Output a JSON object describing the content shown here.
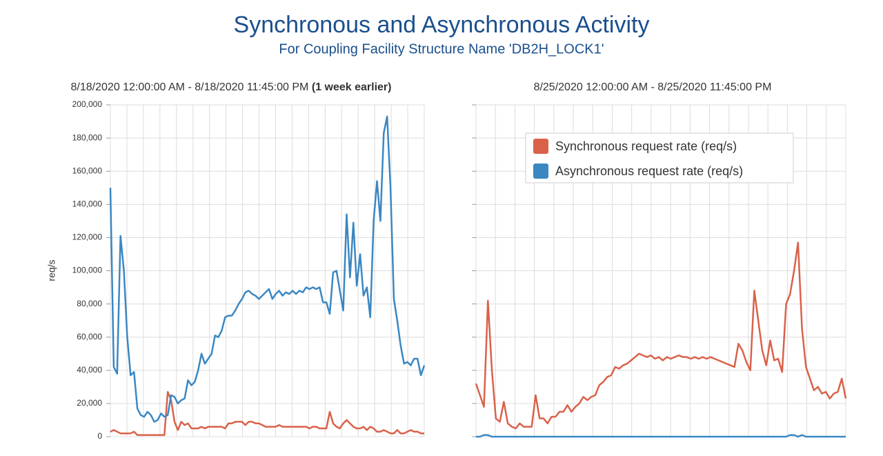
{
  "header": {
    "title": "Synchronous and Asynchronous Activity",
    "subtitle": "For Coupling Facility Structure Name 'DB2H_LOCK1'"
  },
  "chart_data": [
    {
      "type": "line",
      "title": "8/18/2020 12:00:00 AM - 8/18/2020 11:45:00 PM",
      "title_note": "(1 week earlier)",
      "y_label": "req/s",
      "ylim": [
        0,
        200000
      ],
      "yticks": [
        0,
        {
          "value": 20000,
          "label": "20,000"
        },
        {
          "value": 40000,
          "label": "40,000"
        },
        {
          "value": 60000,
          "label": "60,000"
        },
        {
          "value": 80000,
          "label": "80,000"
        },
        {
          "value": 100000,
          "label": "100,000"
        },
        {
          "value": 120000,
          "label": "120,000"
        },
        {
          "value": 140000,
          "label": "140,000"
        },
        {
          "value": 160000,
          "label": "160,000"
        },
        {
          "value": 180000,
          "label": "180,000"
        },
        {
          "value": 200000,
          "label": "200,000"
        }
      ],
      "grid": true,
      "series": [
        {
          "color": "#d9614a",
          "values": [
            3000,
            4000,
            3000,
            2000,
            2000,
            2000,
            2000,
            3000,
            1000,
            1000,
            1000,
            1000,
            1000,
            1000,
            1000,
            1000,
            1000,
            27000,
            22000,
            9000,
            4000,
            9000,
            7000,
            8000,
            5000,
            5000,
            5000,
            6000,
            5000,
            6000,
            6000,
            6000,
            6000,
            6000,
            5000,
            8000,
            8000,
            9000,
            9000,
            9000,
            7000,
            9000,
            9000,
            8000,
            8000,
            7000,
            6000,
            6000,
            6000,
            6000,
            7000,
            6000,
            6000,
            6000,
            6000,
            6000,
            6000,
            6000,
            6000,
            5000,
            6000,
            6000,
            5000,
            5000,
            5000,
            15000,
            8000,
            6000,
            5000,
            8000,
            10000,
            8000,
            6000,
            5000,
            5000,
            6000,
            4000,
            6000,
            5000,
            3000,
            3000,
            4000,
            3000,
            2000,
            2000,
            4000,
            2000,
            2000,
            3000,
            4000,
            3000,
            3000,
            2000,
            2000
          ]
        },
        {
          "color": "#3a87c2",
          "values": [
            150000,
            42000,
            38000,
            121000,
            100000,
            60000,
            37000,
            39000,
            17000,
            13000,
            12000,
            15000,
            13000,
            9000,
            10000,
            14000,
            12000,
            13000,
            25000,
            24000,
            20000,
            22000,
            23000,
            34000,
            31000,
            33000,
            40000,
            50000,
            44000,
            47000,
            50000,
            61000,
            60000,
            64000,
            72000,
            73000,
            73000,
            76000,
            80000,
            83000,
            87000,
            88000,
            86000,
            85000,
            83000,
            85000,
            87000,
            89000,
            83000,
            86000,
            88000,
            85000,
            87000,
            86000,
            88000,
            86000,
            88000,
            87000,
            90000,
            89000,
            90000,
            89000,
            90000,
            81000,
            81000,
            74000,
            99000,
            100000,
            88000,
            76000,
            134000,
            96000,
            129000,
            91000,
            110000,
            85000,
            90000,
            72000,
            130000,
            154000,
            130000,
            183000,
            193000,
            150000,
            83000,
            70000,
            55000,
            44000,
            45000,
            43000,
            47000,
            47000,
            37000,
            43000
          ]
        }
      ]
    },
    {
      "type": "line",
      "title": "8/25/2020 12:00:00 AM - 8/25/2020 11:45:00 PM",
      "ylim": [
        0,
        200000
      ],
      "yticks": [
        0,
        20000,
        40000,
        60000,
        80000,
        100000,
        120000,
        140000,
        160000,
        180000,
        200000
      ],
      "grid": true,
      "legend": "top",
      "series": [
        {
          "name": "Synchronous request rate (req/s)",
          "color": "#d9614a",
          "values": [
            32000,
            25000,
            18000,
            82000,
            40000,
            11000,
            9000,
            21000,
            8000,
            6000,
            5000,
            8000,
            6000,
            6000,
            6000,
            25000,
            11000,
            11000,
            8000,
            12000,
            12000,
            15000,
            15000,
            19000,
            15000,
            18000,
            20000,
            24000,
            22000,
            24000,
            25000,
            31000,
            33000,
            36000,
            37000,
            42000,
            41000,
            43000,
            44000,
            46000,
            48000,
            50000,
            49000,
            48000,
            49000,
            47000,
            48000,
            46000,
            48000,
            47000,
            48000,
            49000,
            48000,
            48000,
            47000,
            48000,
            47000,
            48000,
            47000,
            48000,
            47000,
            46000,
            45000,
            44000,
            43000,
            42000,
            56000,
            52000,
            45000,
            40000,
            88000,
            70000,
            52000,
            43000,
            58000,
            46000,
            47000,
            39000,
            80000,
            86000,
            100000,
            117000,
            65000,
            42000,
            35000,
            28000,
            30000,
            26000,
            27000,
            23000,
            26000,
            27000,
            35000,
            23000
          ]
        },
        {
          "name": "Asynchronous request rate (req/s)",
          "color": "#3a87c2",
          "values": [
            0,
            0,
            1000,
            1000,
            0,
            0,
            0,
            0,
            0,
            0,
            0,
            0,
            0,
            0,
            0,
            0,
            0,
            0,
            0,
            0,
            0,
            0,
            0,
            0,
            0,
            0,
            0,
            0,
            0,
            0,
            0,
            0,
            0,
            0,
            0,
            0,
            0,
            0,
            0,
            0,
            0,
            0,
            0,
            0,
            0,
            0,
            0,
            0,
            0,
            0,
            0,
            0,
            0,
            0,
            0,
            0,
            0,
            0,
            0,
            0,
            0,
            0,
            0,
            0,
            0,
            0,
            0,
            0,
            0,
            0,
            0,
            0,
            0,
            0,
            0,
            0,
            0,
            0,
            0,
            1000,
            1000,
            0,
            1000,
            0,
            0,
            0,
            0,
            0,
            0,
            0,
            0,
            0,
            0,
            0
          ]
        }
      ]
    }
  ]
}
